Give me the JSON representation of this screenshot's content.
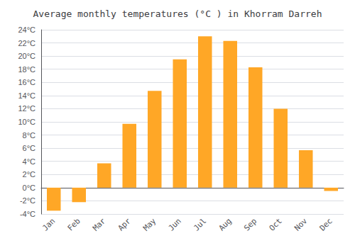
{
  "chart_data": {
    "type": "bar",
    "title": "Average monthly temperatures (°C ) in Khorram Darreh",
    "categories": [
      "Jan",
      "Feb",
      "Mar",
      "Apr",
      "May",
      "Jun",
      "Jul",
      "Aug",
      "Sep",
      "Oct",
      "Nov",
      "Dec"
    ],
    "values": [
      -3.5,
      -2.2,
      3.7,
      9.7,
      14.7,
      19.5,
      23.0,
      22.3,
      18.3,
      12.0,
      5.7,
      -0.5
    ],
    "color": "#FFA726",
    "ylim": [
      -4,
      24
    ],
    "yticks": [
      {
        "value": -4,
        "label": "-4°C"
      },
      {
        "value": -2,
        "label": "-2°C"
      },
      {
        "value": 0,
        "label": "0°C"
      },
      {
        "value": 2,
        "label": "2°C"
      },
      {
        "value": 4,
        "label": "4°C"
      },
      {
        "value": 6,
        "label": "6°C"
      },
      {
        "value": 8,
        "label": "8°C"
      },
      {
        "value": 10,
        "label": "10°C"
      },
      {
        "value": 12,
        "label": "12°C"
      },
      {
        "value": 14,
        "label": "14°C"
      },
      {
        "value": 16,
        "label": "16°C"
      },
      {
        "value": 18,
        "label": "18°C"
      },
      {
        "value": 20,
        "label": "20°C"
      },
      {
        "value": 22,
        "label": "22°C"
      },
      {
        "value": 24,
        "label": "24°C"
      }
    ],
    "grid": true
  }
}
